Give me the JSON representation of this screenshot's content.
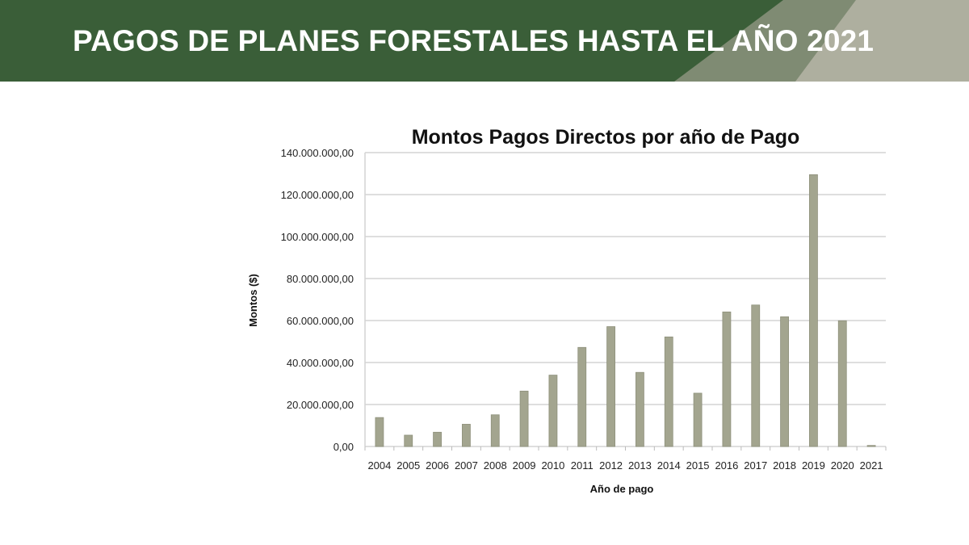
{
  "header": {
    "title": "PAGOS DE PLANES FORESTALES HASTA EL AÑO 2021"
  },
  "colors": {
    "dark_green": "#3a5e38",
    "mid_green": "#7f8b73",
    "light_gray": "#aeaf9f",
    "bar": "#a3a58f"
  },
  "chart_data": {
    "type": "bar",
    "title": "Montos Pagos Directos por año de Pago",
    "xlabel": "Año de pago",
    "ylabel": "Montos ($)",
    "ylim": [
      0,
      140000000
    ],
    "grid": true,
    "yticks": [
      0,
      20000000,
      40000000,
      60000000,
      80000000,
      100000000,
      120000000,
      140000000
    ],
    "ytick_labels": [
      "0,00",
      "20.000.000,00",
      "40.000.000,00",
      "60.000.000,00",
      "80.000.000,00",
      "100.000.000,00",
      "120.000.000,00",
      "140.000.000,00"
    ],
    "categories": [
      "2004",
      "2005",
      "2006",
      "2007",
      "2008",
      "2009",
      "2010",
      "2011",
      "2012",
      "2013",
      "2014",
      "2015",
      "2016",
      "2017",
      "2018",
      "2019",
      "2020",
      "2021"
    ],
    "values": [
      13800000,
      5400000,
      6800000,
      10600000,
      15100000,
      26400000,
      34000000,
      47200000,
      57100000,
      35300000,
      52200000,
      25400000,
      64100000,
      67400000,
      61800000,
      129500000,
      59900000,
      500000
    ]
  }
}
